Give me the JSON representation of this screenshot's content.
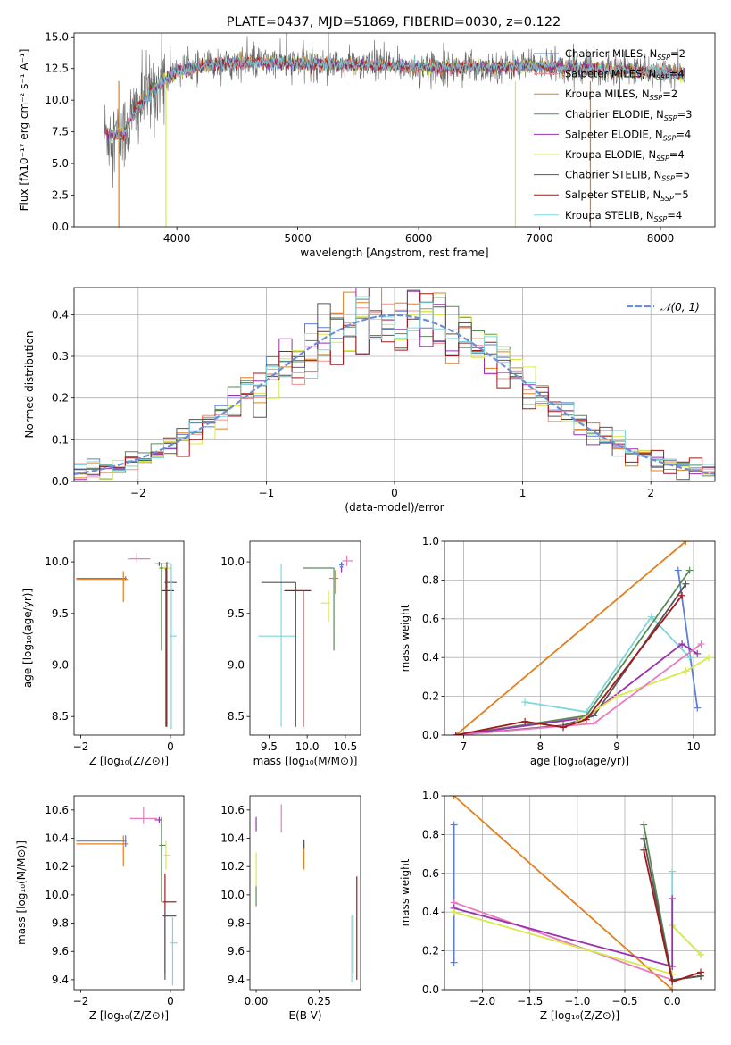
{
  "title": "PLATE=0437, MJD=51869, FIBERID=0030, z=0.122",
  "colors": {
    "chabrier_miles": "#5b7fd6",
    "salpeter_miles": "#f08f8f",
    "kroupa_miles": "#e0801e",
    "chabrier_elodie": "#5a8a5a",
    "salpeter_elodie": "#9b30b0",
    "kroupa_elodie": "#d6ea4a",
    "chabrier_stelib": "#555555",
    "salpeter_stelib": "#a01a1a",
    "kroupa_stelib": "#7fd6da",
    "pink": "#e87bbf",
    "gauss": "#6a8fd6"
  },
  "chart_data": [
    {
      "id": "spectrum",
      "type": "line",
      "title": "PLATE=0437, MJD=51869, FIBERID=0030, z=0.122",
      "xlabel": "wavelength [Angstrom, rest frame]",
      "ylabel": "Flux [fλ10⁻¹⁷ erg cm⁻² s⁻¹ A⁻¹]",
      "xlim": [
        3150,
        8450
      ],
      "ylim": [
        0,
        15.3
      ],
      "xticks": [
        4000,
        5000,
        6000,
        7000,
        8000
      ],
      "yticks": [
        0.0,
        2.5,
        5.0,
        7.5,
        10.0,
        12.5,
        15.0
      ],
      "legend_position": "top-right",
      "legend": [
        {
          "label": "Chabrier MILES, N",
          "sub": "SSP",
          "suffix": "=2",
          "color_key": "chabrier_miles"
        },
        {
          "label": "Salpeter MILES, N",
          "sub": "SSP",
          "suffix": "=4",
          "color_key": "salpeter_miles"
        },
        {
          "label": "Kroupa MILES, N",
          "sub": "SSP",
          "suffix": "=2",
          "color_key": "kroupa_miles"
        },
        {
          "label": "Chabrier ELODIE, N",
          "sub": "SSP",
          "suffix": "=3",
          "color_key": "chabrier_elodie"
        },
        {
          "label": "Salpeter ELODIE, N",
          "sub": "SSP",
          "suffix": "=4",
          "color_key": "salpeter_elodie"
        },
        {
          "label": "Kroupa ELODIE, N",
          "sub": "SSP",
          "suffix": "=4",
          "color_key": "kroupa_elodie"
        },
        {
          "label": "Chabrier STELIB, N",
          "sub": "SSP",
          "suffix": "=5",
          "color_key": "chabrier_stelib"
        },
        {
          "label": "Salpeter STELIB, N",
          "sub": "SSP",
          "suffix": "=5",
          "color_key": "salpeter_stelib"
        },
        {
          "label": "Kroupa STELIB, N",
          "sub": "SSP",
          "suffix": "=4",
          "color_key": "kroupa_stelib"
        }
      ],
      "continuum": [
        [
          3400,
          7.4
        ],
        [
          3550,
          7.2
        ],
        [
          3650,
          9.0
        ],
        [
          3800,
          10.8
        ],
        [
          4000,
          12.3
        ],
        [
          4300,
          12.8
        ],
        [
          4600,
          13.0
        ],
        [
          5000,
          12.9
        ],
        [
          5500,
          12.8
        ],
        [
          6000,
          12.6
        ],
        [
          6500,
          12.6
        ],
        [
          7000,
          12.7
        ],
        [
          7500,
          12.4
        ],
        [
          8000,
          12.2
        ],
        [
          8200,
          12.0
        ]
      ]
    },
    {
      "id": "residuals",
      "type": "histogram",
      "xlabel": "(data-model)/error",
      "ylabel": "Normed distribution",
      "xlim": [
        -2.5,
        2.5
      ],
      "ylim": [
        0,
        0.465
      ],
      "xticks": [
        -2,
        -1,
        0,
        1,
        2
      ],
      "yticks": [
        0.0,
        0.1,
        0.2,
        0.3,
        0.4
      ],
      "grid": true,
      "legend_position": "top-right",
      "legend": [
        {
          "label": "𝒩(0, 1)",
          "color_key": "gauss"
        }
      ],
      "bin_width": 0.1,
      "series_order": [
        "chabrier_miles",
        "salpeter_miles",
        "kroupa_miles",
        "chabrier_elodie",
        "salpeter_elodie",
        "kroupa_elodie",
        "chabrier_stelib",
        "salpeter_stelib",
        "kroupa_stelib"
      ]
    },
    {
      "id": "age_vs_Z",
      "type": "errorbar",
      "xlabel": "Z [log₁₀(Z/Z⊙)]",
      "ylabel": "age  [log₁₀(age/yr)]",
      "xlim": [
        -2.15,
        0.3
      ],
      "ylim": [
        8.32,
        10.2
      ],
      "xticks": [
        -2,
        0
      ],
      "yticks": [
        8.5,
        9.0,
        9.5,
        10.0
      ],
      "points": [
        {
          "color_key": "chabrier_miles",
          "x": -1.0,
          "xerr": [
            1.1,
            0.02
          ],
          "y": 9.84,
          "yerr": [
            0.02,
            0.02
          ]
        },
        {
          "color_key": "kroupa_miles",
          "x": -1.05,
          "xerr": [
            1.05,
            0.1
          ],
          "y": 9.83,
          "yerr": [
            0.22,
            0.08
          ]
        },
        {
          "color_key": "pink",
          "x": -0.75,
          "xerr": [
            0.2,
            0.3
          ],
          "y": 10.03,
          "yerr": [
            0.03,
            0.06
          ]
        },
        {
          "color_key": "chabrier_stelib",
          "x": -0.25,
          "xerr": [
            0.1,
            0.25
          ],
          "y": 9.98,
          "yerr": [
            0.02,
            0.02
          ]
        },
        {
          "color_key": "kroupa_elodie",
          "x": -0.12,
          "xerr": [
            0.1,
            0.15
          ],
          "y": 9.94,
          "yerr": [
            0.02,
            0.02
          ]
        },
        {
          "color_key": "chabrier_elodie",
          "x": -0.2,
          "xerr": [
            0.05,
            0.05
          ],
          "y": 9.94,
          "yerr": [
            0.8,
            0.05
          ]
        },
        {
          "color_key": "chabrier_stelib",
          "x": -0.08,
          "xerr": [
            0.05,
            0.22
          ],
          "y": 9.8,
          "yerr": [
            1.4,
            0.2
          ]
        },
        {
          "color_key": "salpeter_stelib",
          "x": -0.1,
          "xerr": [
            0.1,
            0.18
          ],
          "y": 9.72,
          "yerr": [
            1.32,
            0.22
          ]
        },
        {
          "color_key": "kroupa_stelib",
          "x": 0.02,
          "xerr": [
            0.03,
            0.12
          ],
          "y": 9.28,
          "yerr": [
            0.9,
            0.7
          ]
        }
      ]
    },
    {
      "id": "age_vs_mass",
      "type": "errorbar",
      "xlabel": "mass [log₁₀(M/M⊙)]",
      "ylabel": "",
      "xlim": [
        9.25,
        10.7
      ],
      "ylim": [
        8.32,
        10.2
      ],
      "xticks": [
        9.5,
        10.0,
        10.5
      ],
      "yticks": [
        8.5,
        9.0,
        9.5,
        10.0
      ],
      "points": [
        {
          "color_key": "kroupa_stelib",
          "x": 9.66,
          "xerr": [
            0.3,
            0.18
          ],
          "y": 9.28,
          "yerr": [
            0.88,
            0.7
          ]
        },
        {
          "color_key": "chabrier_stelib",
          "x": 9.85,
          "xerr": [
            0.45,
            0.0
          ],
          "y": 9.8,
          "yerr": [
            1.4,
            0.0
          ]
        },
        {
          "color_key": "salpeter_stelib",
          "x": 9.95,
          "xerr": [
            0.25,
            0.1
          ],
          "y": 9.72,
          "yerr": [
            1.32,
            0.0
          ]
        },
        {
          "color_key": "chabrier_elodie",
          "x": 10.35,
          "xerr": [
            0.4,
            0.0
          ],
          "y": 9.94,
          "yerr": [
            0.8,
            0.0
          ]
        },
        {
          "color_key": "kroupa_elodie",
          "x": 10.28,
          "xerr": [
            0.1,
            0.02
          ],
          "y": 9.6,
          "yerr": [
            0.18,
            0.12
          ]
        },
        {
          "color_key": "kroupa_miles",
          "x": 10.37,
          "xerr": [
            0.08,
            0.04
          ],
          "y": 9.84,
          "yerr": [
            0.15,
            0.08
          ]
        },
        {
          "color_key": "salpeter_elodie",
          "x": 10.45,
          "xerr": [
            0.02,
            0.02
          ],
          "y": 9.95,
          "yerr": [
            0.05,
            0.05
          ]
        },
        {
          "color_key": "chabrier_miles",
          "x": 10.45,
          "xerr": [
            0.03,
            0.03
          ],
          "y": 9.97,
          "yerr": [
            0.03,
            0.03
          ]
        },
        {
          "color_key": "pink",
          "x": 10.52,
          "xerr": [
            0.06,
            0.08
          ],
          "y": 10.01,
          "yerr": [
            0.05,
            0.05
          ]
        }
      ]
    },
    {
      "id": "weight_vs_age",
      "type": "line",
      "xlabel": "age  [log₁₀(age/yr)]",
      "ylabel": "mass weight",
      "xlim": [
        6.75,
        10.28
      ],
      "ylim": [
        0,
        1.0
      ],
      "xticks": [
        7,
        8,
        9,
        10
      ],
      "yticks": [
        0.0,
        0.2,
        0.4,
        0.6,
        0.8,
        1.0
      ],
      "grid": true,
      "series": [
        {
          "color_key": "kroupa_miles",
          "x": [
            6.9,
            9.9
          ],
          "y": [
            0.0,
            1.0
          ]
        },
        {
          "color_key": "chabrier_miles",
          "x": [
            9.8,
            10.05
          ],
          "y": [
            0.85,
            0.14
          ]
        },
        {
          "color_key": "kroupa_stelib",
          "x": [
            7.8,
            8.6,
            9.45,
            9.95
          ],
          "y": [
            0.17,
            0.12,
            0.61,
            0.4
          ]
        },
        {
          "color_key": "chabrier_stelib",
          "x": [
            6.9,
            8.3,
            8.7,
            9.9
          ],
          "y": [
            0.0,
            0.05,
            0.1,
            0.78
          ]
        },
        {
          "color_key": "chabrier_elodie",
          "x": [
            6.9,
            8.6,
            9.95
          ],
          "y": [
            0.0,
            0.1,
            0.85
          ]
        },
        {
          "color_key": "salpeter_elodie",
          "x": [
            6.9,
            8.6,
            9.85,
            10.05
          ],
          "y": [
            0.0,
            0.09,
            0.47,
            0.42
          ]
        },
        {
          "color_key": "kroupa_elodie",
          "x": [
            8.5,
            9.0,
            9.9,
            10.2
          ],
          "y": [
            0.07,
            0.2,
            0.33,
            0.4
          ]
        },
        {
          "color_key": "pink",
          "x": [
            6.9,
            8.7,
            10.1
          ],
          "y": [
            0.0,
            0.06,
            0.47
          ]
        },
        {
          "color_key": "salpeter_stelib",
          "x": [
            6.9,
            7.8,
            8.3,
            8.6,
            9.85
          ],
          "y": [
            0.0,
            0.07,
            0.04,
            0.08,
            0.72
          ]
        }
      ]
    },
    {
      "id": "mass_vs_Z",
      "type": "errorbar",
      "xlabel": "Z [log₁₀(Z/Z⊙)]",
      "ylabel": "mass [log₁₀(M/M⊙)]",
      "xlim": [
        -2.15,
        0.3
      ],
      "ylim": [
        9.33,
        10.7
      ],
      "xticks": [
        -2,
        0
      ],
      "yticks": [
        9.4,
        9.6,
        9.8,
        10.0,
        10.2,
        10.4,
        10.6
      ],
      "points": [
        {
          "color_key": "kroupa_miles",
          "x": -1.05,
          "xerr": [
            1.05,
            0.1
          ],
          "y": 10.36,
          "yerr": [
            0.16,
            0.06
          ]
        },
        {
          "color_key": "chabrier_miles",
          "x": -1.0,
          "xerr": [
            1.1,
            0.02
          ],
          "y": 10.38,
          "yerr": [
            0.04,
            0.04
          ]
        },
        {
          "color_key": "pink",
          "x": -0.6,
          "xerr": [
            0.3,
            0.3
          ],
          "y": 10.54,
          "yerr": [
            0.04,
            0.08
          ]
        },
        {
          "color_key": "salpeter_elodie",
          "x": -0.25,
          "xerr": [
            0.1,
            0.05
          ],
          "y": 10.53,
          "yerr": [
            0.02,
            0.02
          ]
        },
        {
          "color_key": "chabrier_elodie",
          "x": -0.2,
          "xerr": [
            0.05,
            0.1
          ],
          "y": 10.35,
          "yerr": [
            0.4,
            0.2
          ]
        },
        {
          "color_key": "kroupa_elodie",
          "x": -0.1,
          "xerr": [
            0.05,
            0.1
          ],
          "y": 10.28,
          "yerr": [
            0.1,
            0.1
          ]
        },
        {
          "color_key": "salpeter_stelib",
          "x": -0.12,
          "xerr": [
            0.05,
            0.25
          ],
          "y": 9.95,
          "yerr": [
            0.5,
            0.2
          ]
        },
        {
          "color_key": "chabrier_stelib",
          "x": -0.12,
          "xerr": [
            0.05,
            0.25
          ],
          "y": 9.85,
          "yerr": [
            0.45,
            0.05
          ]
        },
        {
          "color_key": "kroupa_stelib",
          "x": 0.05,
          "xerr": [
            0.05,
            0.1
          ],
          "y": 9.66,
          "yerr": [
            0.3,
            0.18
          ]
        }
      ]
    },
    {
      "id": "mass_vs_ebv",
      "type": "errorbar",
      "xlabel": "E(B-V)",
      "ylabel": "",
      "xlim": [
        -0.025,
        0.415
      ],
      "ylim": [
        9.33,
        10.7
      ],
      "xticks": [
        0.0,
        0.25
      ],
      "xticklabels": [
        "0.00",
        "0.25"
      ],
      "yticks": [
        9.4,
        9.6,
        9.8,
        10.0,
        10.2,
        10.4,
        10.6
      ],
      "points": [
        {
          "color_key": "salpeter_elodie",
          "x": 0.0,
          "xerr": [
            0,
            0
          ],
          "y": 10.45,
          "yerr": [
            0.0,
            0.1
          ]
        },
        {
          "color_key": "kroupa_elodie",
          "x": 0.0,
          "xerr": [
            0,
            0
          ],
          "y": 10.2,
          "yerr": [
            0.15,
            0.1
          ]
        },
        {
          "color_key": "chabrier_elodie",
          "x": 0.0,
          "xerr": [
            0,
            0
          ],
          "y": 9.99,
          "yerr": [
            0.07,
            0.07
          ]
        },
        {
          "color_key": "pink",
          "x": 0.1,
          "xerr": [
            0,
            0
          ],
          "y": 10.52,
          "yerr": [
            0.08,
            0.12
          ]
        },
        {
          "color_key": "kroupa_miles",
          "x": 0.19,
          "xerr": [
            0,
            0
          ],
          "y": 10.3,
          "yerr": [
            0.12,
            0.08
          ]
        },
        {
          "color_key": "chabrier_stelib",
          "x": 0.19,
          "xerr": [
            0,
            0
          ],
          "y": 10.36,
          "yerr": [
            0.03,
            0.03
          ]
        },
        {
          "color_key": "salpeter_stelib",
          "x": 0.4,
          "xerr": [
            0,
            0
          ],
          "y": 9.85,
          "yerr": [
            0.45,
            0.28
          ]
        },
        {
          "color_key": "kroupa_stelib",
          "x": 0.38,
          "xerr": [
            0,
            0
          ],
          "y": 9.66,
          "yerr": [
            0.28,
            0.2
          ]
        },
        {
          "color_key": "chabrier_elodie",
          "x": 0.385,
          "xerr": [
            0,
            0
          ],
          "y": 9.7,
          "yerr": [
            0.25,
            0.15
          ]
        }
      ]
    },
    {
      "id": "weight_vs_Z",
      "type": "line",
      "xlabel": "Z [log₁₀(Z/Z⊙)]",
      "ylabel": "mass weight",
      "xlim": [
        -2.4,
        0.45
      ],
      "ylim": [
        0,
        1.0
      ],
      "xticks": [
        -2.0,
        -1.5,
        -1.0,
        -0.5,
        0.0
      ],
      "xticklabels": [
        "−2.0",
        "−1.5",
        "−1.0",
        "−0.5",
        "0.0"
      ],
      "yticks": [
        0.0,
        0.2,
        0.4,
        0.6,
        0.8,
        1.0
      ],
      "grid": true,
      "series": [
        {
          "color_key": "kroupa_miles",
          "x": [
            -2.3,
            0.0
          ],
          "y": [
            1.0,
            0.0
          ]
        },
        {
          "color_key": "chabrier_miles",
          "x": [
            -2.3,
            -2.3
          ],
          "y": [
            0.85,
            0.14
          ]
        },
        {
          "color_key": "pink",
          "x": [
            -2.3,
            0.0
          ],
          "y": [
            0.45,
            0.05
          ]
        },
        {
          "color_key": "salpeter_elodie",
          "x": [
            -2.3,
            0.0
          ],
          "y": [
            0.42,
            0.12
          ]
        },
        {
          "color_key": "kroupa_elodie",
          "x": [
            -2.3,
            0.0
          ],
          "y": [
            0.4,
            0.08
          ]
        },
        {
          "color_key": "kroupa_stelib",
          "x": [
            0.0,
            0.0,
            0.3
          ],
          "y": [
            0.61,
            0.33,
            0.18
          ]
        },
        {
          "color_key": "kroupa_elodie",
          "x": [
            0.0,
            0.3
          ],
          "y": [
            0.33,
            0.18
          ]
        },
        {
          "color_key": "salpeter_elodie",
          "x": [
            0.0,
            0.0
          ],
          "y": [
            0.47,
            0.12
          ]
        },
        {
          "color_key": "chabrier_elodie",
          "x": [
            -0.3,
            0.0,
            0.3
          ],
          "y": [
            0.85,
            0.05,
            0.07
          ]
        },
        {
          "color_key": "chabrier_stelib",
          "x": [
            -0.3,
            0.0,
            0.3
          ],
          "y": [
            0.78,
            0.05,
            0.07
          ]
        },
        {
          "color_key": "salpeter_stelib",
          "x": [
            -0.3,
            0.0,
            0.3
          ],
          "y": [
            0.72,
            0.04,
            0.09
          ]
        }
      ]
    }
  ]
}
